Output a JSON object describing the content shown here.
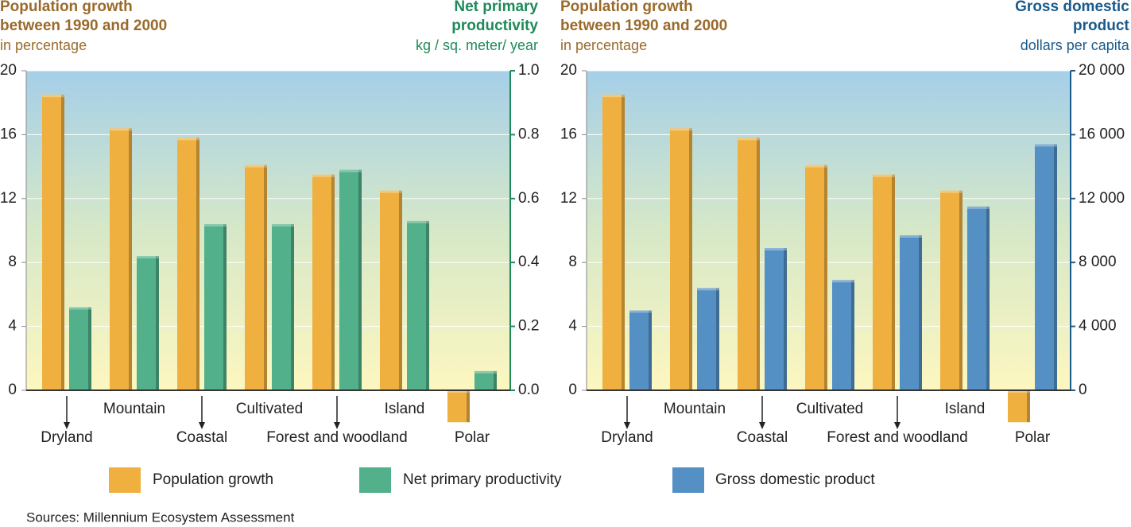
{
  "chart_data": [
    {
      "type": "bar",
      "y_title": [
        "Population growth",
        "between 1990 and 2000"
      ],
      "y_unit": "in percentage",
      "y2_title": [
        "Net primary",
        "productivity"
      ],
      "y2_unit": "kg / sq. meter/ year",
      "categories": [
        "Dryland",
        "Mountain",
        "Coastal",
        "Cultivated",
        "Forest and woodland",
        "Island",
        "Polar"
      ],
      "series": [
        {
          "name": "Population growth",
          "color": "#f0b040",
          "values": [
            18.5,
            16.4,
            15.8,
            14.1,
            13.5,
            12.5,
            -2
          ]
        },
        {
          "name": "Net primary productivity",
          "color": "#52b08a",
          "axis": "y2",
          "values": [
            0.26,
            0.42,
            0.52,
            0.52,
            0.69,
            0.53,
            0.06
          ]
        }
      ],
      "ylim": [
        0,
        20
      ],
      "yticks": [
        0,
        4,
        8,
        12,
        16,
        20
      ],
      "y2lim": [
        0,
        1
      ],
      "y2ticks": [
        {
          "value": 0,
          "label": "0.0"
        },
        {
          "value": 0.2,
          "label": "0.2"
        },
        {
          "value": 0.4,
          "label": "0.4"
        },
        {
          "value": 0.6,
          "label": "0.6"
        },
        {
          "value": 0.8,
          "label": "0.8"
        },
        {
          "value": 1,
          "label": "1.0"
        }
      ],
      "y2color": "#1e8a5a"
    },
    {
      "type": "bar",
      "y_title": [
        "Population growth",
        "between 1990 and 2000"
      ],
      "y_unit": "in percentage",
      "y2_title": [
        "Gross domestic",
        "product"
      ],
      "y2_unit": "dollars per capita",
      "categories": [
        "Dryland",
        "Mountain",
        "Coastal",
        "Cultivated",
        "Forest and woodland",
        "Island",
        "Polar"
      ],
      "series": [
        {
          "name": "Population growth",
          "color": "#f0b040",
          "values": [
            18.5,
            16.4,
            15.8,
            14.1,
            13.5,
            12.5,
            -2
          ]
        },
        {
          "name": "Gross domestic product",
          "color": "#5590c5",
          "axis": "y2",
          "values": [
            5000,
            6400,
            8900,
            6900,
            9700,
            11500,
            15400
          ]
        }
      ],
      "ylim": [
        0,
        20
      ],
      "yticks": [
        0,
        4,
        8,
        12,
        16,
        20
      ],
      "y2lim": [
        0,
        20000
      ],
      "y2ticks": [
        0,
        {
          "value": 4000,
          "label": "4 000"
        },
        {
          "value": 8000,
          "label": "8 000"
        },
        {
          "value": 12000,
          "label": "12 000"
        },
        {
          "value": 16000,
          "label": "16 000"
        },
        {
          "value": 20000,
          "label": "20 000"
        }
      ],
      "y2color": "#1a5a8c"
    }
  ],
  "source": "Sources: Millennium Ecosystem Assessment"
}
